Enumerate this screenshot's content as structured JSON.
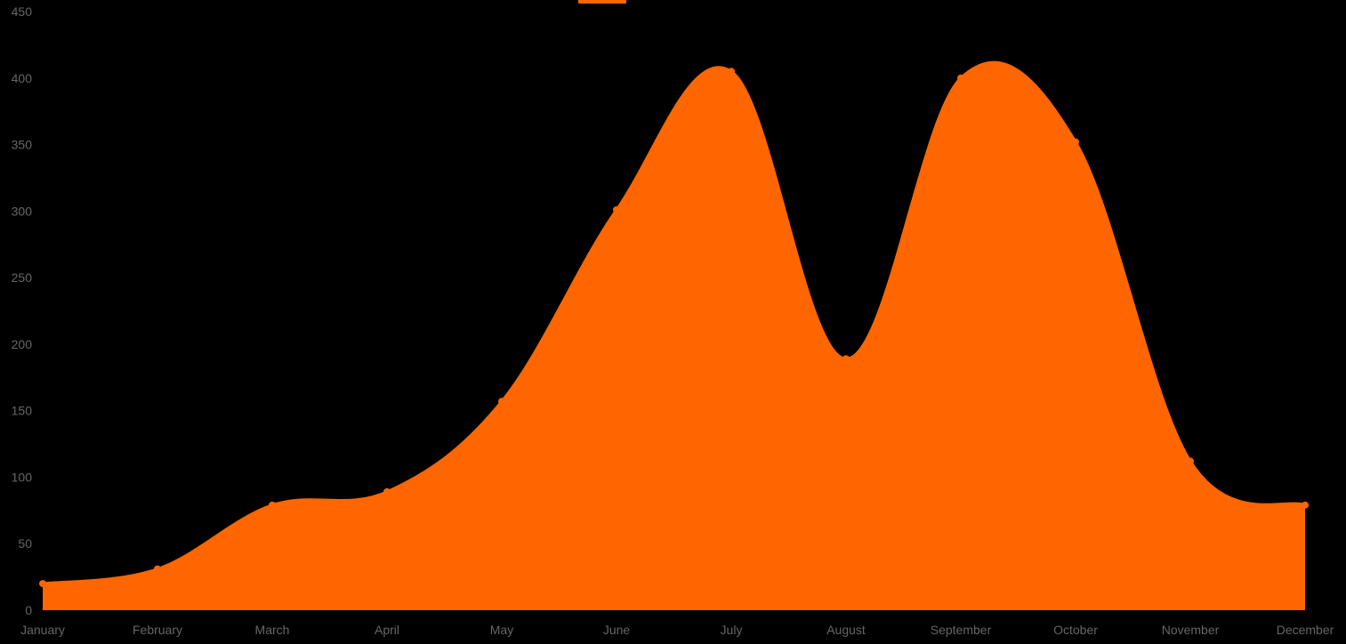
{
  "chart_data": {
    "type": "area",
    "categories": [
      "January",
      "February",
      "March",
      "April",
      "May",
      "June",
      "July",
      "August",
      "September",
      "October",
      "November",
      "December"
    ],
    "series": [
      {
        "values": [
          20,
          31,
          79,
          89,
          157,
          301,
          405,
          189,
          400,
          352,
          112,
          79
        ],
        "color": "#ff6600"
      }
    ],
    "ylim": [
      0,
      450
    ],
    "yticks": [
      0,
      50,
      100,
      150,
      200,
      250,
      300,
      350,
      400,
      450
    ],
    "ytick_labels": [
      "0",
      "50",
      "100",
      "150",
      "200",
      "250",
      "300",
      "350",
      "400",
      "450"
    ],
    "grid": false,
    "legend": "top-center",
    "background": "#000000",
    "tick_color": "#666666"
  }
}
